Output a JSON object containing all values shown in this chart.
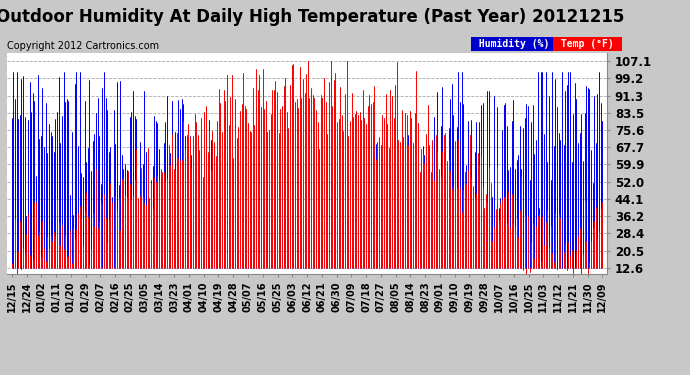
{
  "title": "Outdoor Humidity At Daily High Temperature (Past Year) 20121215",
  "copyright": "Copyright 2012 Cartronics.com",
  "legend_humidity": "Humidity (%)",
  "legend_temp": "Temp (°F)",
  "yticks": [
    12.6,
    20.5,
    28.4,
    36.2,
    44.1,
    52.0,
    59.9,
    67.7,
    75.6,
    83.5,
    91.3,
    99.2,
    107.1
  ],
  "ylim": [
    10.0,
    111.0
  ],
  "xtick_labels": [
    "12/15",
    "12/24",
    "01/02",
    "01/11",
    "01/20",
    "01/29",
    "02/07",
    "02/16",
    "02/25",
    "03/05",
    "03/14",
    "03/23",
    "04/01",
    "04/10",
    "04/19",
    "04/28",
    "05/07",
    "05/16",
    "05/25",
    "06/03",
    "06/12",
    "06/21",
    "06/30",
    "07/09",
    "07/18",
    "07/27",
    "08/05",
    "08/14",
    "08/23",
    "09/01",
    "09/10",
    "09/19",
    "09/28",
    "10/07",
    "10/16",
    "10/25",
    "11/03",
    "11/12",
    "11/21",
    "11/30",
    "12/09"
  ],
  "bg_color": "#c8c8c8",
  "plot_bg_color": "#ffffff",
  "grid_color": "#aaaaaa",
  "line_color_humidity": "#0000ff",
  "line_color_temp": "#ff0000",
  "line_color_black": "#000000",
  "legend_humidity_bg": "#0000cc",
  "legend_temp_bg": "#ff0000",
  "title_fontsize": 12,
  "copyright_fontsize": 7,
  "tick_fontsize": 7,
  "ytick_fontsize": 8.5,
  "n_days": 366
}
